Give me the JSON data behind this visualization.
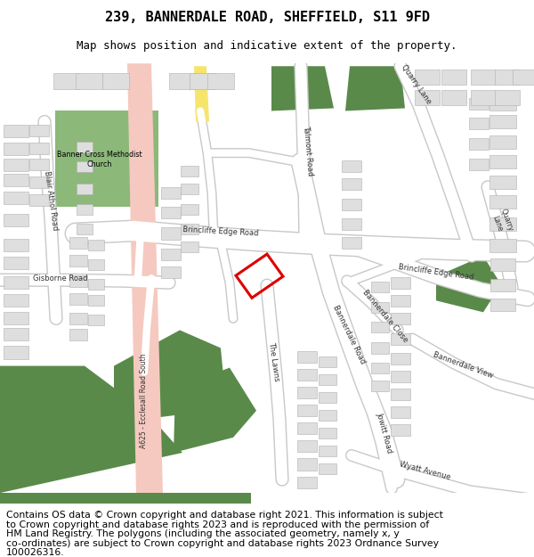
{
  "title_line1": "239, BANNERDALE ROAD, SHEFFIELD, S11 9FD",
  "title_line2": "Map shows position and indicative extent of the property.",
  "footer_lines": [
    "Contains OS data © Crown copyright and database right 2021. This information is subject",
    "to Crown copyright and database rights 2023 and is reproduced with the permission of",
    "HM Land Registry. The polygons (including the associated geometry, namely x, y",
    "co-ordinates) are subject to Crown copyright and database rights 2023 Ordnance Survey",
    "100026316."
  ],
  "bg_color": "#f5f4f1",
  "road_color": "#ffffff",
  "road_outline": "#c8c8c8",
  "main_road_pink": "#f5c9c0",
  "building_color": "#dedede",
  "building_edge": "#b0b0b0",
  "green_light": "#8cb87a",
  "green_dark": "#5a8a4a",
  "highlight_red": "#dd0000",
  "title_fontsize": 11,
  "subtitle_fontsize": 9,
  "footer_fontsize": 7.8,
  "label_fontsize": 6.0
}
